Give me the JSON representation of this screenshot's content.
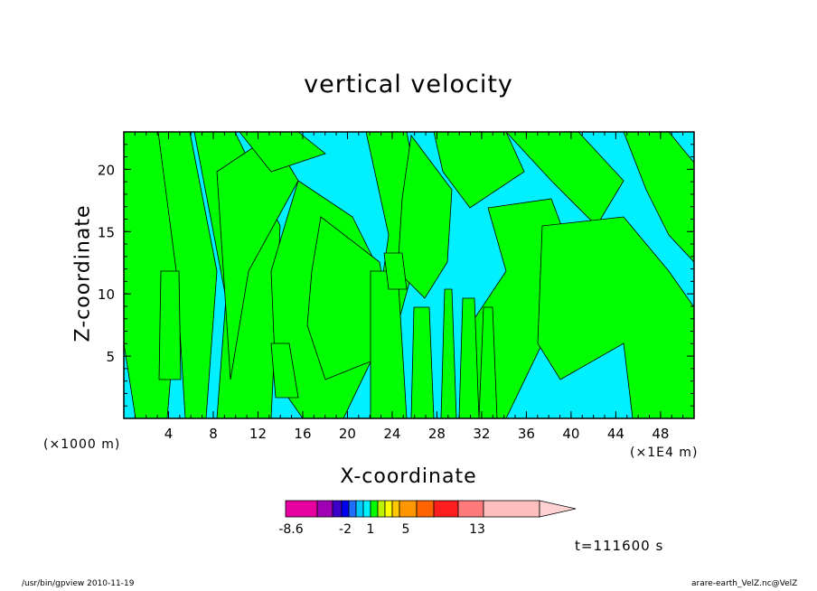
{
  "title": "vertical velocity",
  "footer": {
    "left": "/usr/bin/gpview   2010-11-19",
    "right": "arare-earth_VelZ.nc@VelZ"
  },
  "time_label": "t=111600 s",
  "colors": {
    "positive_fill": "#00ff00",
    "negative_fill": "#00f0ff",
    "contour_line": "#000000"
  },
  "chart_data": {
    "type": "heatmap",
    "title": "vertical velocity",
    "xlabel": "X-coordinate",
    "ylabel": "Z-coordinate",
    "x_unit_left": "(×1000 m)",
    "x_unit_right": "(×1E4 m)",
    "x_ticks": [
      4,
      8,
      12,
      16,
      20,
      24,
      28,
      32,
      36,
      40,
      44,
      48
    ],
    "y_ticks": [
      5,
      10,
      15,
      20
    ],
    "xlim": [
      0,
      51
    ],
    "ylim": [
      0,
      23
    ],
    "colorbar": {
      "tick_labels": [
        "-8.6",
        "-2",
        "1",
        "5",
        "13"
      ],
      "colors": [
        "#e600a0",
        "#a000b4",
        "#3c00c8",
        "#0000f0",
        "#1e6eff",
        "#00c8ff",
        "#00f0ff",
        "#00ff00",
        "#bef000",
        "#ffff00",
        "#ffc800",
        "#ff9600",
        "#ff6400",
        "#ff1e1e",
        "#ff7a7a",
        "#ffbebe",
        "#ffd2d2"
      ],
      "extends": "max"
    }
  }
}
